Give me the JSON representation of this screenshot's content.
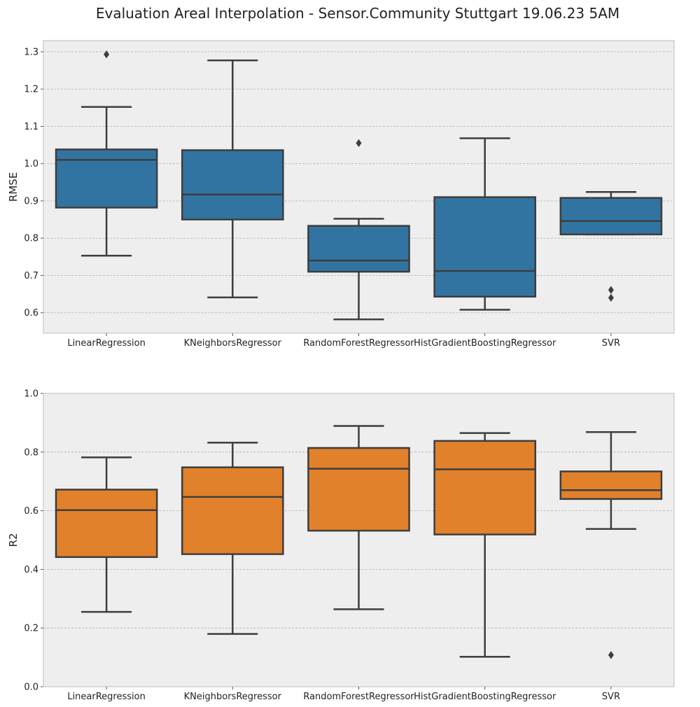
{
  "figure": {
    "title": "Evaluation Areal Interpolation - Sensor.Community Stuttgart 19.06.23 5AM"
  },
  "style": {
    "background": "#ffffff",
    "axes_background": "#eeeeee",
    "grid_color": "#b0b0b0",
    "spine_color": "#bcbcbc",
    "line_color": "#3d3d3d",
    "text_color": "#222222"
  },
  "chart_data": [
    {
      "type": "box",
      "ylabel": "RMSE",
      "ylim": [
        0.545,
        1.33
      ],
      "yticks": [
        0.6,
        0.7,
        0.8,
        0.9,
        1.0,
        1.1,
        1.2,
        1.3
      ],
      "ytick_labels": [
        "0.6",
        "0.7",
        "0.8",
        "0.9",
        "1.0",
        "1.1",
        "1.2",
        "1.3"
      ],
      "grid": "y",
      "categories": [
        "LinearRegression",
        "KNeighborsRegressor",
        "RandomForestRegressor",
        "HistGradientBoostingRegressor",
        "SVR"
      ],
      "color": "#3274a1",
      "boxes": [
        {
          "whislo": 0.753,
          "q1": 0.882,
          "med": 1.01,
          "q3": 1.038,
          "whishi": 1.152,
          "fliers": [
            1.293
          ]
        },
        {
          "whislo": 0.641,
          "q1": 0.85,
          "med": 0.917,
          "q3": 1.036,
          "whishi": 1.277,
          "fliers": []
        },
        {
          "whislo": 0.582,
          "q1": 0.71,
          "med": 0.74,
          "q3": 0.833,
          "whishi": 0.852,
          "fliers": [
            1.055
          ]
        },
        {
          "whislo": 0.608,
          "q1": 0.643,
          "med": 0.712,
          "q3": 0.91,
          "whishi": 1.068,
          "fliers": []
        },
        {
          "whislo": 0.81,
          "q1": 0.81,
          "med": 0.846,
          "q3": 0.908,
          "whishi": 0.924,
          "fliers": [
            0.661,
            0.64
          ]
        }
      ]
    },
    {
      "type": "box",
      "ylabel": "R2",
      "ylim": [
        0.0,
        1.0
      ],
      "yticks": [
        0.0,
        0.2,
        0.4,
        0.6,
        0.8,
        1.0
      ],
      "ytick_labels": [
        "0.0",
        "0.2",
        "0.4",
        "0.6",
        "0.8",
        "1.0"
      ],
      "grid": "y",
      "categories": [
        "LinearRegression",
        "KNeighborsRegressor",
        "RandomForestRegressor",
        "HistGradientBoostingRegressor",
        "SVR"
      ],
      "color": "#e1812c",
      "boxes": [
        {
          "whislo": 0.255,
          "q1": 0.442,
          "med": 0.602,
          "q3": 0.672,
          "whishi": 0.782,
          "fliers": []
        },
        {
          "whislo": 0.18,
          "q1": 0.452,
          "med": 0.647,
          "q3": 0.748,
          "whishi": 0.832,
          "fliers": []
        },
        {
          "whislo": 0.264,
          "q1": 0.532,
          "med": 0.743,
          "q3": 0.814,
          "whishi": 0.889,
          "fliers": []
        },
        {
          "whislo": 0.102,
          "q1": 0.519,
          "med": 0.741,
          "q3": 0.838,
          "whishi": 0.865,
          "fliers": []
        },
        {
          "whislo": 0.538,
          "q1": 0.64,
          "med": 0.67,
          "q3": 0.734,
          "whishi": 0.868,
          "fliers": [
            0.108
          ]
        }
      ]
    }
  ]
}
